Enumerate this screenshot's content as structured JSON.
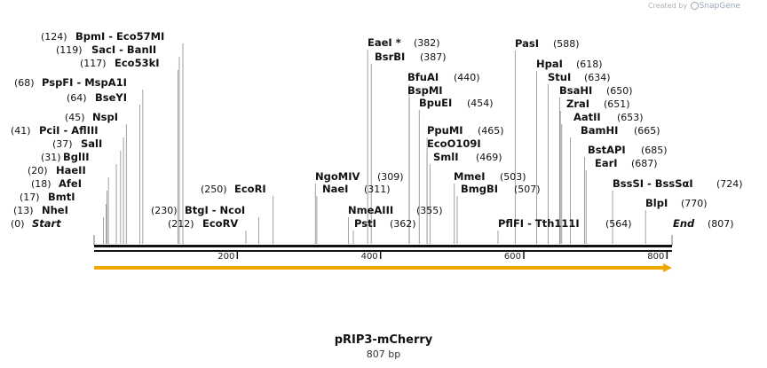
{
  "credit": {
    "prefix": "Created by",
    "brand": "SnapGene"
  },
  "map": {
    "title": "pRIP3-mCherry",
    "subtitle": "807 bp",
    "length": 807,
    "ticks": [
      "200",
      "400",
      "600",
      "800"
    ],
    "tick_values": [
      200,
      400,
      600,
      800
    ],
    "colors": {
      "backbone": "#111111",
      "feature": "#f0a800",
      "line": "#888888"
    }
  },
  "labels": [
    {
      "id": "start",
      "pos": "(0)",
      "name": "Start",
      "site": 0,
      "italic": true
    },
    {
      "id": "nhei",
      "pos": "(13)",
      "name": "NheI",
      "site": 13
    },
    {
      "id": "bmti",
      "pos": "(17)",
      "name": "BmtI",
      "site": 17
    },
    {
      "id": "afei",
      "pos": "(18)",
      "name": "AfeI",
      "site": 18
    },
    {
      "id": "haeii",
      "pos": "(20)",
      "name": "HaeII",
      "site": 20
    },
    {
      "id": "bglii",
      "pos": "(31)",
      "name": "BglII",
      "site": 31
    },
    {
      "id": "sali",
      "pos": "(37)",
      "name": "SalI",
      "site": 37
    },
    {
      "id": "pcli",
      "pos": "(41)",
      "name": "PciI - AflIII",
      "site": 41
    },
    {
      "id": "nspi",
      "pos": "(45)",
      "name": "NspI",
      "site": 45
    },
    {
      "id": "bseyi",
      "pos": "(64)",
      "name": "BseYI",
      "site": 64
    },
    {
      "id": "pspfi",
      "pos": "(68)",
      "name": "PspFI - MspA1I",
      "site": 68
    },
    {
      "id": "eco53ki",
      "pos": "(117)",
      "name": "Eco53kI",
      "site": 117
    },
    {
      "id": "saci",
      "pos": "(119)",
      "name": "SacI - BanII",
      "site": 119
    },
    {
      "id": "bpmi",
      "pos": "(124)",
      "name": "BpmI - Eco57MI",
      "site": 124
    },
    {
      "id": "ecorv",
      "pos": "(212)",
      "name": "EcoRV",
      "site": 212
    },
    {
      "id": "btgi",
      "pos": "(230)",
      "name": "BtgI - NcoI",
      "site": 230
    },
    {
      "id": "ecori",
      "pos": "(250)",
      "name": "EcoRI",
      "site": 250
    },
    {
      "id": "ngomiv",
      "pos": "(309)",
      "name": "NgoMIV",
      "site": 309
    },
    {
      "id": "naei",
      "pos": "(311)",
      "name": "NaeI",
      "site": 311
    },
    {
      "id": "nmeaiii",
      "pos": "(355)",
      "name": "NmeAIII",
      "site": 355
    },
    {
      "id": "psti",
      "pos": "(362)",
      "name": "PstI",
      "site": 362
    },
    {
      "id": "eaei",
      "pos": "(382)",
      "name": "EaeI *",
      "site": 382
    },
    {
      "id": "bsrbi",
      "pos": "(387)",
      "name": "BsrBI",
      "site": 387
    },
    {
      "id": "bfuai",
      "pos": "(440)",
      "name": "BfuAI",
      "site": 440
    },
    {
      "id": "bspmi",
      "pos": "",
      "name": "BspMI",
      "site": 440
    },
    {
      "id": "bpuei",
      "pos": "(454)",
      "name": "BpuEI",
      "site": 454
    },
    {
      "id": "ppumi",
      "pos": "(465)",
      "name": "PpuMI",
      "site": 465
    },
    {
      "id": "ecoo109i",
      "pos": "",
      "name": "EcoO109I",
      "site": 465
    },
    {
      "id": "smli",
      "pos": "(469)",
      "name": "SmlI",
      "site": 469
    },
    {
      "id": "mmei",
      "pos": "(503)",
      "name": "MmeI",
      "site": 503
    },
    {
      "id": "bmgbi",
      "pos": "(507)",
      "name": "BmgBI",
      "site": 507
    },
    {
      "id": "pflfi",
      "pos": "",
      "name": "PflFI - Tth111I",
      "site": 564
    },
    {
      "id": "pflfi_pos",
      "pos": "(564)",
      "name": "",
      "site": 564
    },
    {
      "id": "pasi",
      "pos": "(588)",
      "name": "PasI",
      "site": 588
    },
    {
      "id": "hpai",
      "pos": "(618)",
      "name": "HpaI",
      "site": 618
    },
    {
      "id": "stui",
      "pos": "(634)",
      "name": "StuI",
      "site": 634
    },
    {
      "id": "bsahi",
      "pos": "(650)",
      "name": "BsaHI",
      "site": 650
    },
    {
      "id": "zrai",
      "pos": "(651)",
      "name": "ZraI",
      "site": 651
    },
    {
      "id": "aatii",
      "pos": "(653)",
      "name": "AatII",
      "site": 653
    },
    {
      "id": "bamhi",
      "pos": "(665)",
      "name": "BamHI",
      "site": 665
    },
    {
      "id": "bstapi",
      "pos": "(685)",
      "name": "BstAPI",
      "site": 685
    },
    {
      "id": "eari",
      "pos": "(687)",
      "name": "EarI",
      "site": 687
    },
    {
      "id": "bsssi",
      "pos": "(724)",
      "name": "BssSI - BssSαI",
      "site": 724
    },
    {
      "id": "blpi",
      "pos": "(770)",
      "name": "BlpI",
      "site": 770
    },
    {
      "id": "end",
      "pos": "(807)",
      "name": "End",
      "site": 807,
      "italic": true
    }
  ]
}
